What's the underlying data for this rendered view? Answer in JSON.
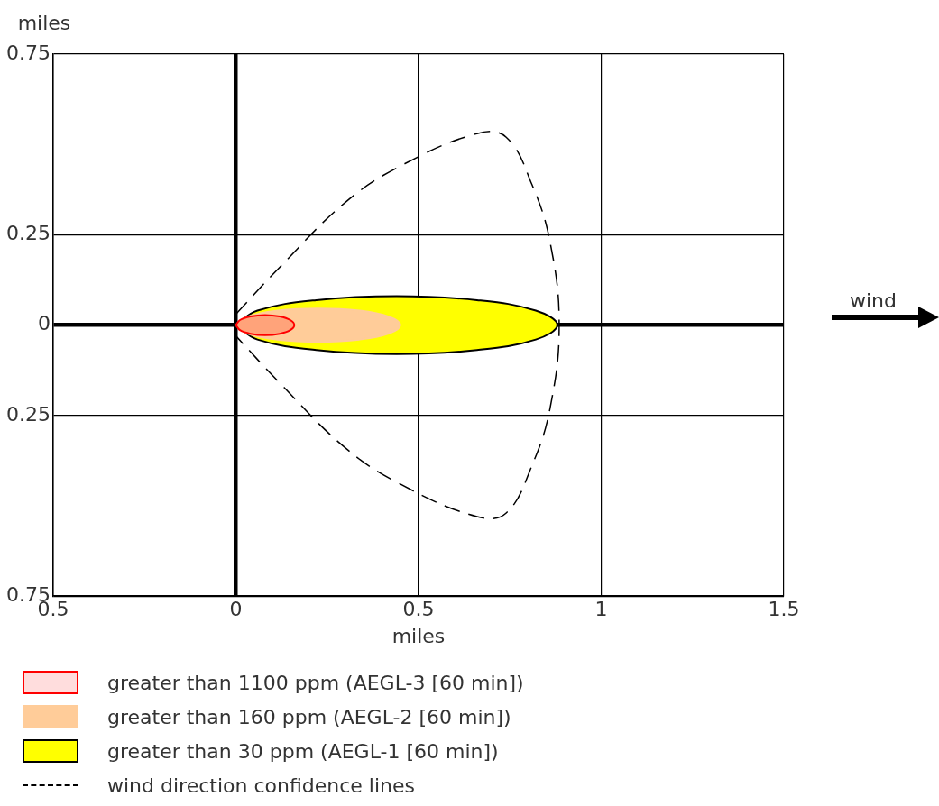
{
  "chart_data": {
    "type": "area",
    "xlabel": "miles",
    "ylabel": "miles",
    "xlim": [
      -0.5,
      1.5
    ],
    "xticks": [
      {
        "value": -0.5,
        "label": "0.5"
      },
      0,
      0.5,
      1,
      1.5
    ],
    "ylim": [
      -0.75,
      0.75
    ],
    "yticks": [
      {
        "value": -0.75,
        "label": "0.75"
      },
      {
        "value": -0.25,
        "label": "0.25"
      },
      0,
      0.25,
      0.75
    ],
    "grid": true,
    "legend": "bottom",
    "marker": "none",
    "annotations": [
      "wind"
    ],
    "series": [
      {
        "name": "greater than 30 ppm (AEGL-1 [60 min])",
        "color": "#ffff00",
        "x": [
          0,
          0.059,
          0.22,
          0.44,
          0.66,
          0.821,
          0.88,
          0.821,
          0.66,
          0.44,
          0.22,
          0.059,
          0
        ],
        "values": [
          0,
          0.04,
          0.069,
          0.08,
          0.069,
          0.04,
          0,
          -0.04,
          -0.069,
          -0.08,
          -0.069,
          -0.04,
          0
        ]
      },
      {
        "name": "greater than 160 ppm (AEGL-2 [60 min])",
        "color": "#ffcc99",
        "x": [
          0,
          0.03,
          0.113,
          0.225,
          0.338,
          0.42,
          0.45,
          0.42,
          0.338,
          0.225,
          0.113,
          0.03,
          0
        ],
        "values": [
          0,
          0.023,
          0.04,
          0.046,
          0.04,
          0.023,
          0,
          -0.023,
          -0.04,
          -0.046,
          -0.04,
          -0.023,
          0
        ]
      },
      {
        "name": "greater than 1100 ppm (AEGL-3 [60 min])",
        "color": "#ff0000",
        "x": [
          0,
          0.011,
          0.04,
          0.08,
          0.12,
          0.149,
          0.16,
          0.149,
          0.12,
          0.08,
          0.04,
          0.011,
          0
        ],
        "values": [
          0,
          0.014,
          0.024,
          0.028,
          0.024,
          0.014,
          0,
          -0.014,
          -0.024,
          -0.028,
          -0.024,
          -0.014,
          0
        ]
      },
      {
        "name": "wind direction confidence lines",
        "type": "line",
        "line_style": "dashed",
        "color": "#000000",
        "x": [
          0,
          0.12,
          0.3,
          0.45,
          0.66,
          0.74,
          0.81,
          0.86,
          0.885,
          0.86,
          0.81,
          0.74,
          0.66,
          0.45,
          0.3,
          0.12,
          0
        ],
        "values": [
          0.03,
          0.16,
          0.34,
          0.44,
          0.53,
          0.52,
          0.39,
          0.23,
          0,
          -0.23,
          -0.39,
          -0.52,
          -0.53,
          -0.44,
          -0.34,
          -0.16,
          -0.03
        ]
      }
    ]
  }
}
